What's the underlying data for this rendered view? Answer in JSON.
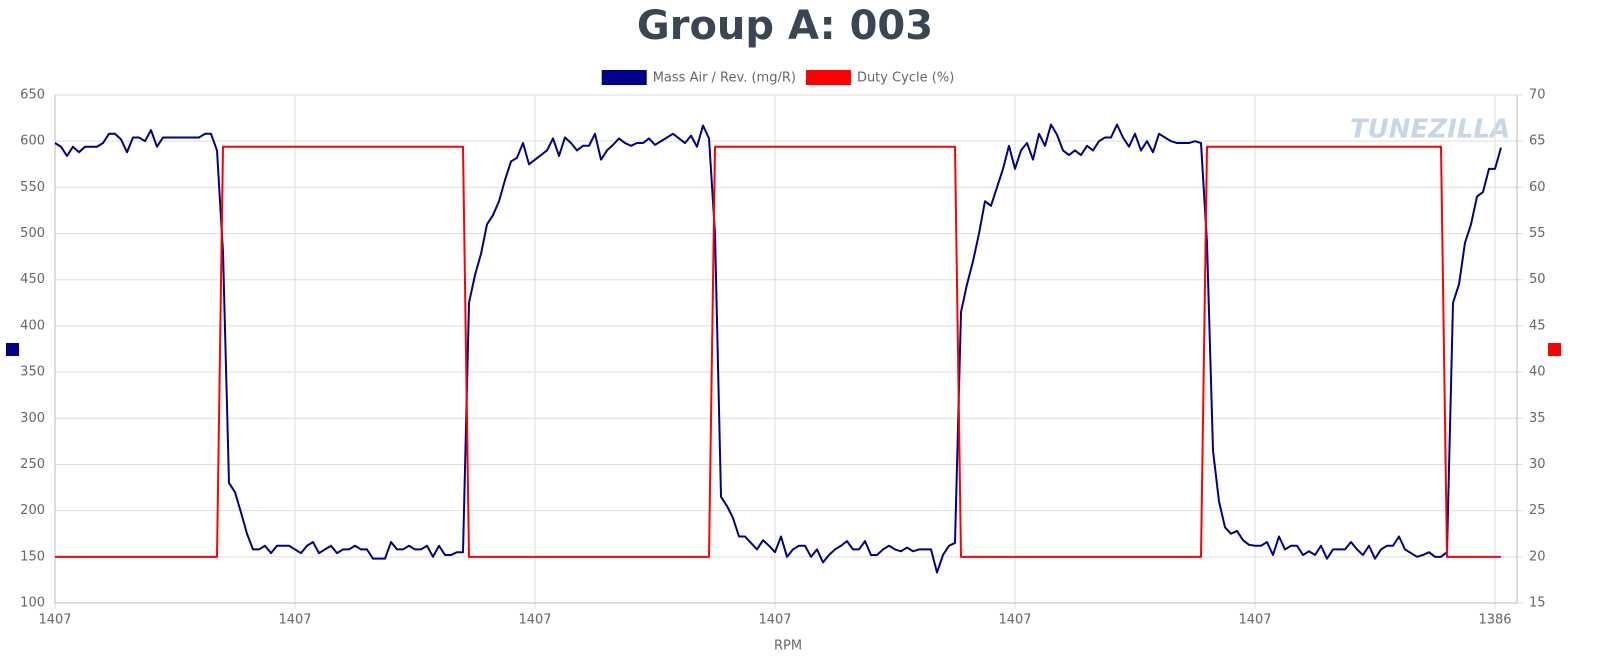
{
  "chart_data": {
    "type": "line",
    "title": "Group A: 003",
    "xlabel": "RPM",
    "watermark": "TUNEZILLA",
    "categories": [
      "1407",
      null,
      null,
      null,
      null,
      null,
      null,
      null,
      null,
      null,
      null,
      null,
      null,
      null,
      null,
      null,
      null,
      null,
      null,
      null,
      null,
      null,
      null,
      null,
      null,
      null,
      null,
      null,
      null,
      null,
      null,
      null,
      null,
      null,
      null,
      null,
      null,
      null,
      null,
      null,
      "1407",
      null,
      null,
      null,
      null,
      null,
      null,
      null,
      null,
      null,
      null,
      null,
      null,
      null,
      null,
      null,
      null,
      null,
      null,
      null,
      null,
      null,
      null,
      null,
      null,
      null,
      null,
      null,
      null,
      null,
      null,
      null,
      null,
      null,
      null,
      null,
      null,
      null,
      null,
      null,
      "1407",
      null,
      null,
      null,
      null,
      null,
      null,
      null,
      null,
      null,
      null,
      null,
      null,
      null,
      null,
      null,
      null,
      null,
      null,
      null,
      null,
      null,
      null,
      null,
      null,
      null,
      null,
      null,
      null,
      null,
      null,
      null,
      null,
      null,
      null,
      null,
      null,
      null,
      null,
      null,
      "1407",
      null,
      null,
      null,
      null,
      null,
      null,
      null,
      null,
      null,
      null,
      null,
      null,
      null,
      null,
      null,
      null,
      null,
      null,
      null,
      null,
      null,
      null,
      null,
      null,
      null,
      null,
      null,
      null,
      null,
      null,
      null,
      null,
      null,
      null,
      null,
      null,
      null,
      null,
      null,
      "1407",
      null,
      null,
      null,
      null,
      null,
      null,
      null,
      null,
      null,
      null,
      null,
      null,
      null,
      null,
      null,
      null,
      null,
      null,
      null,
      null,
      null,
      null,
      null,
      null,
      null,
      null,
      null,
      null,
      null,
      null,
      null,
      null,
      null,
      null,
      null,
      null,
      null,
      null,
      null,
      "1407",
      null,
      null,
      null,
      null,
      null,
      null,
      null,
      null,
      null,
      null,
      null,
      null,
      null,
      null,
      null,
      null,
      null,
      null,
      null,
      null,
      null,
      null,
      null,
      null,
      null,
      null,
      null,
      null,
      null,
      null,
      null,
      null,
      null,
      null,
      null,
      null,
      null,
      null,
      null,
      "1386",
      null
    ],
    "series": [
      {
        "name": "Mass Air / Rev. (mg/R)",
        "color": "#000088",
        "axis": "y",
        "values": [
          598,
          594,
          584,
          594,
          588,
          594,
          594,
          594,
          598,
          608,
          608,
          602,
          588,
          604,
          604,
          600,
          612,
          594,
          604,
          604,
          604,
          604,
          604,
          604,
          604,
          608,
          608,
          590,
          480,
          230,
          220,
          198,
          175,
          158,
          158,
          162,
          154,
          162,
          162,
          162,
          158,
          154,
          162,
          166,
          154,
          158,
          162,
          154,
          158,
          158,
          162,
          158,
          158,
          148,
          148,
          148,
          166,
          158,
          158,
          162,
          158,
          158,
          162,
          150,
          162,
          152,
          152,
          155,
          155,
          425,
          455,
          478,
          510,
          520,
          535,
          558,
          578,
          582,
          598,
          575,
          580,
          585,
          590,
          603,
          584,
          604,
          598,
          590,
          595,
          595,
          608,
          580,
          590,
          596,
          603,
          598,
          595,
          598,
          598,
          603,
          596,
          600,
          604,
          608,
          603,
          598,
          606,
          594,
          617,
          603,
          500,
          215,
          205,
          192,
          172,
          172,
          165,
          158,
          168,
          162,
          155,
          172,
          150,
          158,
          162,
          162,
          150,
          158,
          144,
          152,
          158,
          162,
          167,
          158,
          158,
          167,
          152,
          152,
          158,
          162,
          158,
          156,
          160,
          156,
          158,
          158,
          158,
          133,
          152,
          162,
          165,
          415,
          445,
          470,
          500,
          535,
          530,
          550,
          570,
          595,
          570,
          590,
          598,
          580,
          608,
          595,
          618,
          607,
          590,
          585,
          590,
          585,
          595,
          590,
          600,
          604,
          604,
          618,
          604,
          594,
          608,
          590,
          600,
          588,
          608,
          604,
          600,
          598,
          598,
          598,
          600,
          598,
          490,
          265,
          210,
          182,
          175,
          178,
          168,
          163,
          162,
          162,
          166,
          152,
          172,
          158,
          162,
          162,
          152,
          156,
          152,
          162,
          148,
          158,
          158,
          158,
          166,
          158,
          152,
          162,
          148,
          158,
          162,
          162,
          172,
          158,
          154,
          150,
          152,
          155,
          150,
          150,
          155,
          425,
          445,
          490,
          510,
          540,
          545,
          570,
          570,
          593
        ]
      },
      {
        "name": "Duty Cycle (%)",
        "color": "#ff0000",
        "axis": "y2",
        "values": [
          20,
          20,
          20,
          20,
          20,
          20,
          20,
          20,
          20,
          20,
          20,
          20,
          20,
          20,
          20,
          20,
          20,
          20,
          20,
          20,
          20,
          20,
          20,
          20,
          20,
          20,
          20,
          20,
          64.4,
          64.4,
          64.4,
          64.4,
          64.4,
          64.4,
          64.4,
          64.4,
          64.4,
          64.4,
          64.4,
          64.4,
          64.4,
          64.4,
          64.4,
          64.4,
          64.4,
          64.4,
          64.4,
          64.4,
          64.4,
          64.4,
          64.4,
          64.4,
          64.4,
          64.4,
          64.4,
          64.4,
          64.4,
          64.4,
          64.4,
          64.4,
          64.4,
          64.4,
          64.4,
          64.4,
          64.4,
          64.4,
          64.4,
          64.4,
          64.4,
          20,
          20,
          20,
          20,
          20,
          20,
          20,
          20,
          20,
          20,
          20,
          20,
          20,
          20,
          20,
          20,
          20,
          20,
          20,
          20,
          20,
          20,
          20,
          20,
          20,
          20,
          20,
          20,
          20,
          20,
          20,
          20,
          20,
          20,
          20,
          20,
          20,
          20,
          20,
          20,
          20,
          64.4,
          64.4,
          64.4,
          64.4,
          64.4,
          64.4,
          64.4,
          64.4,
          64.4,
          64.4,
          64.4,
          64.4,
          64.4,
          64.4,
          64.4,
          64.4,
          64.4,
          64.4,
          64.4,
          64.4,
          64.4,
          64.4,
          64.4,
          64.4,
          64.4,
          64.4,
          64.4,
          64.4,
          64.4,
          64.4,
          64.4,
          64.4,
          64.4,
          64.4,
          64.4,
          64.4,
          64.4,
          64.4,
          64.4,
          64.4,
          64.4,
          20,
          20,
          20,
          20,
          20,
          20,
          20,
          20,
          20,
          20,
          20,
          20,
          20,
          20,
          20,
          20,
          20,
          20,
          20,
          20,
          20,
          20,
          20,
          20,
          20,
          20,
          20,
          20,
          20,
          20,
          20,
          20,
          20,
          20,
          20,
          20,
          20,
          20,
          20,
          20,
          20,
          64.4,
          64.4,
          64.4,
          64.4,
          64.4,
          64.4,
          64.4,
          64.4,
          64.4,
          64.4,
          64.4,
          64.4,
          64.4,
          64.4,
          64.4,
          64.4,
          64.4,
          64.4,
          64.4,
          64.4,
          64.4,
          64.4,
          64.4,
          64.4,
          64.4,
          64.4,
          64.4,
          64.4,
          64.4,
          64.4,
          64.4,
          64.4,
          64.4,
          64.4,
          64.4,
          64.4,
          64.4,
          64.4,
          64.4,
          64.4,
          20,
          20,
          20,
          20,
          20,
          20,
          20,
          20,
          20,
          20
        ]
      }
    ],
    "ylim": [
      100,
      650
    ],
    "yticks": [
      100,
      150,
      200,
      250,
      300,
      350,
      400,
      450,
      500,
      550,
      600,
      650
    ],
    "y2lim": [
      15,
      70
    ],
    "y2ticks": [
      15,
      20,
      25,
      30,
      35,
      40,
      45,
      50,
      55,
      60,
      65,
      70
    ],
    "grid": true
  }
}
